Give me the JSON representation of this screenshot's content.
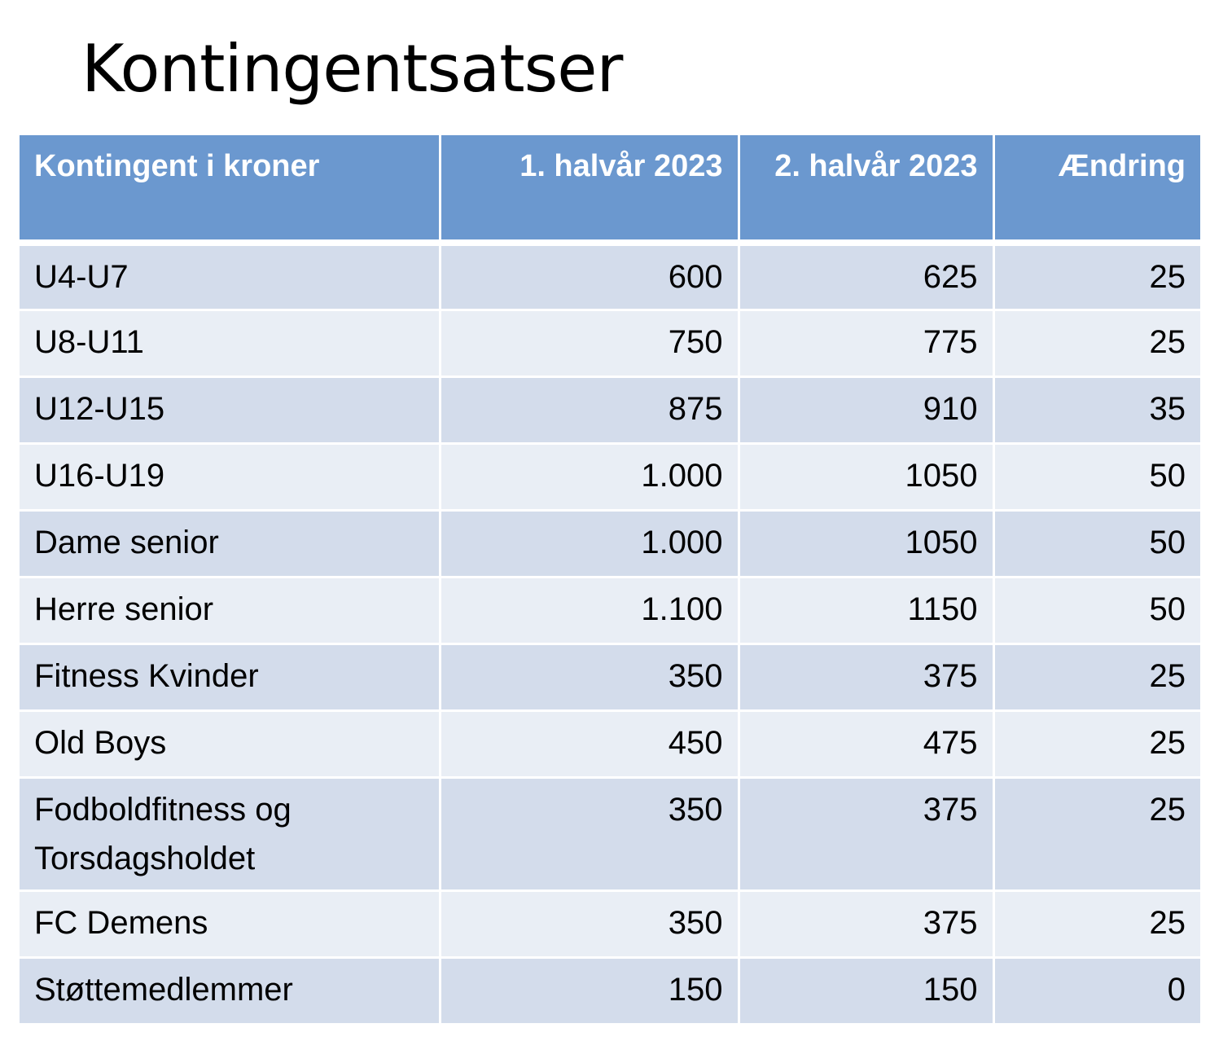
{
  "title": "Kontingentsatser",
  "table": {
    "headers": [
      "Kontingent i kroner",
      "1. halvår 2023",
      "2. halvår 2023",
      "Ændring"
    ],
    "rows": [
      [
        "U4-U7",
        "600",
        "625",
        "25"
      ],
      [
        "U8-U11",
        "750",
        "775",
        "25"
      ],
      [
        "U12-U15",
        "875",
        "910",
        "35"
      ],
      [
        "U16-U19",
        "1.000",
        "1050",
        "50"
      ],
      [
        "Dame senior",
        "1.000",
        "1050",
        "50"
      ],
      [
        "Herre senior",
        "1.100",
        "1150",
        "50"
      ],
      [
        "Fitness Kvinder",
        "350",
        "375",
        "25"
      ],
      [
        "Old Boys",
        "450",
        "475",
        "25"
      ],
      [
        "Fodboldfitness og Torsdagsholdet",
        "350",
        "375",
        "25"
      ],
      [
        "FC Demens",
        "350",
        "375",
        "25"
      ],
      [
        "Støttemedlemmer",
        "150",
        "150",
        "0"
      ]
    ]
  },
  "colors": {
    "header_background": "#6b98cf",
    "row_band_dark": "#d3dceb",
    "row_band_light": "#e9eef5",
    "header_text": "#ffffff"
  }
}
